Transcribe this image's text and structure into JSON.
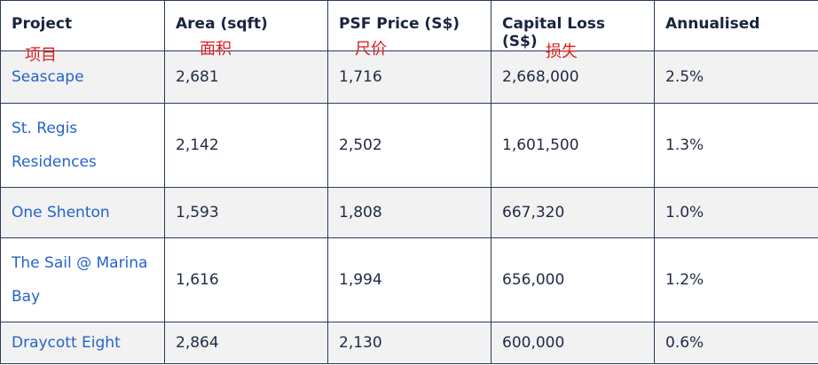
{
  "table": {
    "headers": [
      "Project",
      "Area (sqft)",
      "PSF Price (S$)",
      "Capital Loss (S$)",
      "Annualised"
    ],
    "rows": [
      {
        "project": "Seascape",
        "area": "2,681",
        "psf": "1,716",
        "loss": "2,668,000",
        "annualised": "2.5%"
      },
      {
        "project": "St. Regis Residences",
        "area": "2,142",
        "psf": "2,502",
        "loss": "1,601,500",
        "annualised": "1.3%"
      },
      {
        "project": "One Shenton",
        "area": "1,593",
        "psf": "1,808",
        "loss": "667,320",
        "annualised": "1.0%"
      },
      {
        "project": "The Sail @ Marina Bay",
        "area": "1,616",
        "psf": "1,994",
        "loss": "656,000",
        "annualised": "1.2%"
      },
      {
        "project": "Draycott Eight",
        "area": "2,864",
        "psf": "2,130",
        "loss": "600,000",
        "annualised": "0.6%"
      }
    ]
  },
  "annotations": {
    "project": "项目",
    "area": "面积",
    "psf": "尺价",
    "loss": "损失"
  },
  "colors": {
    "link": "#2563c9",
    "annotation": "#e01e1e",
    "border": "#2b3a5a",
    "stripe": "#f2f2f3"
  }
}
